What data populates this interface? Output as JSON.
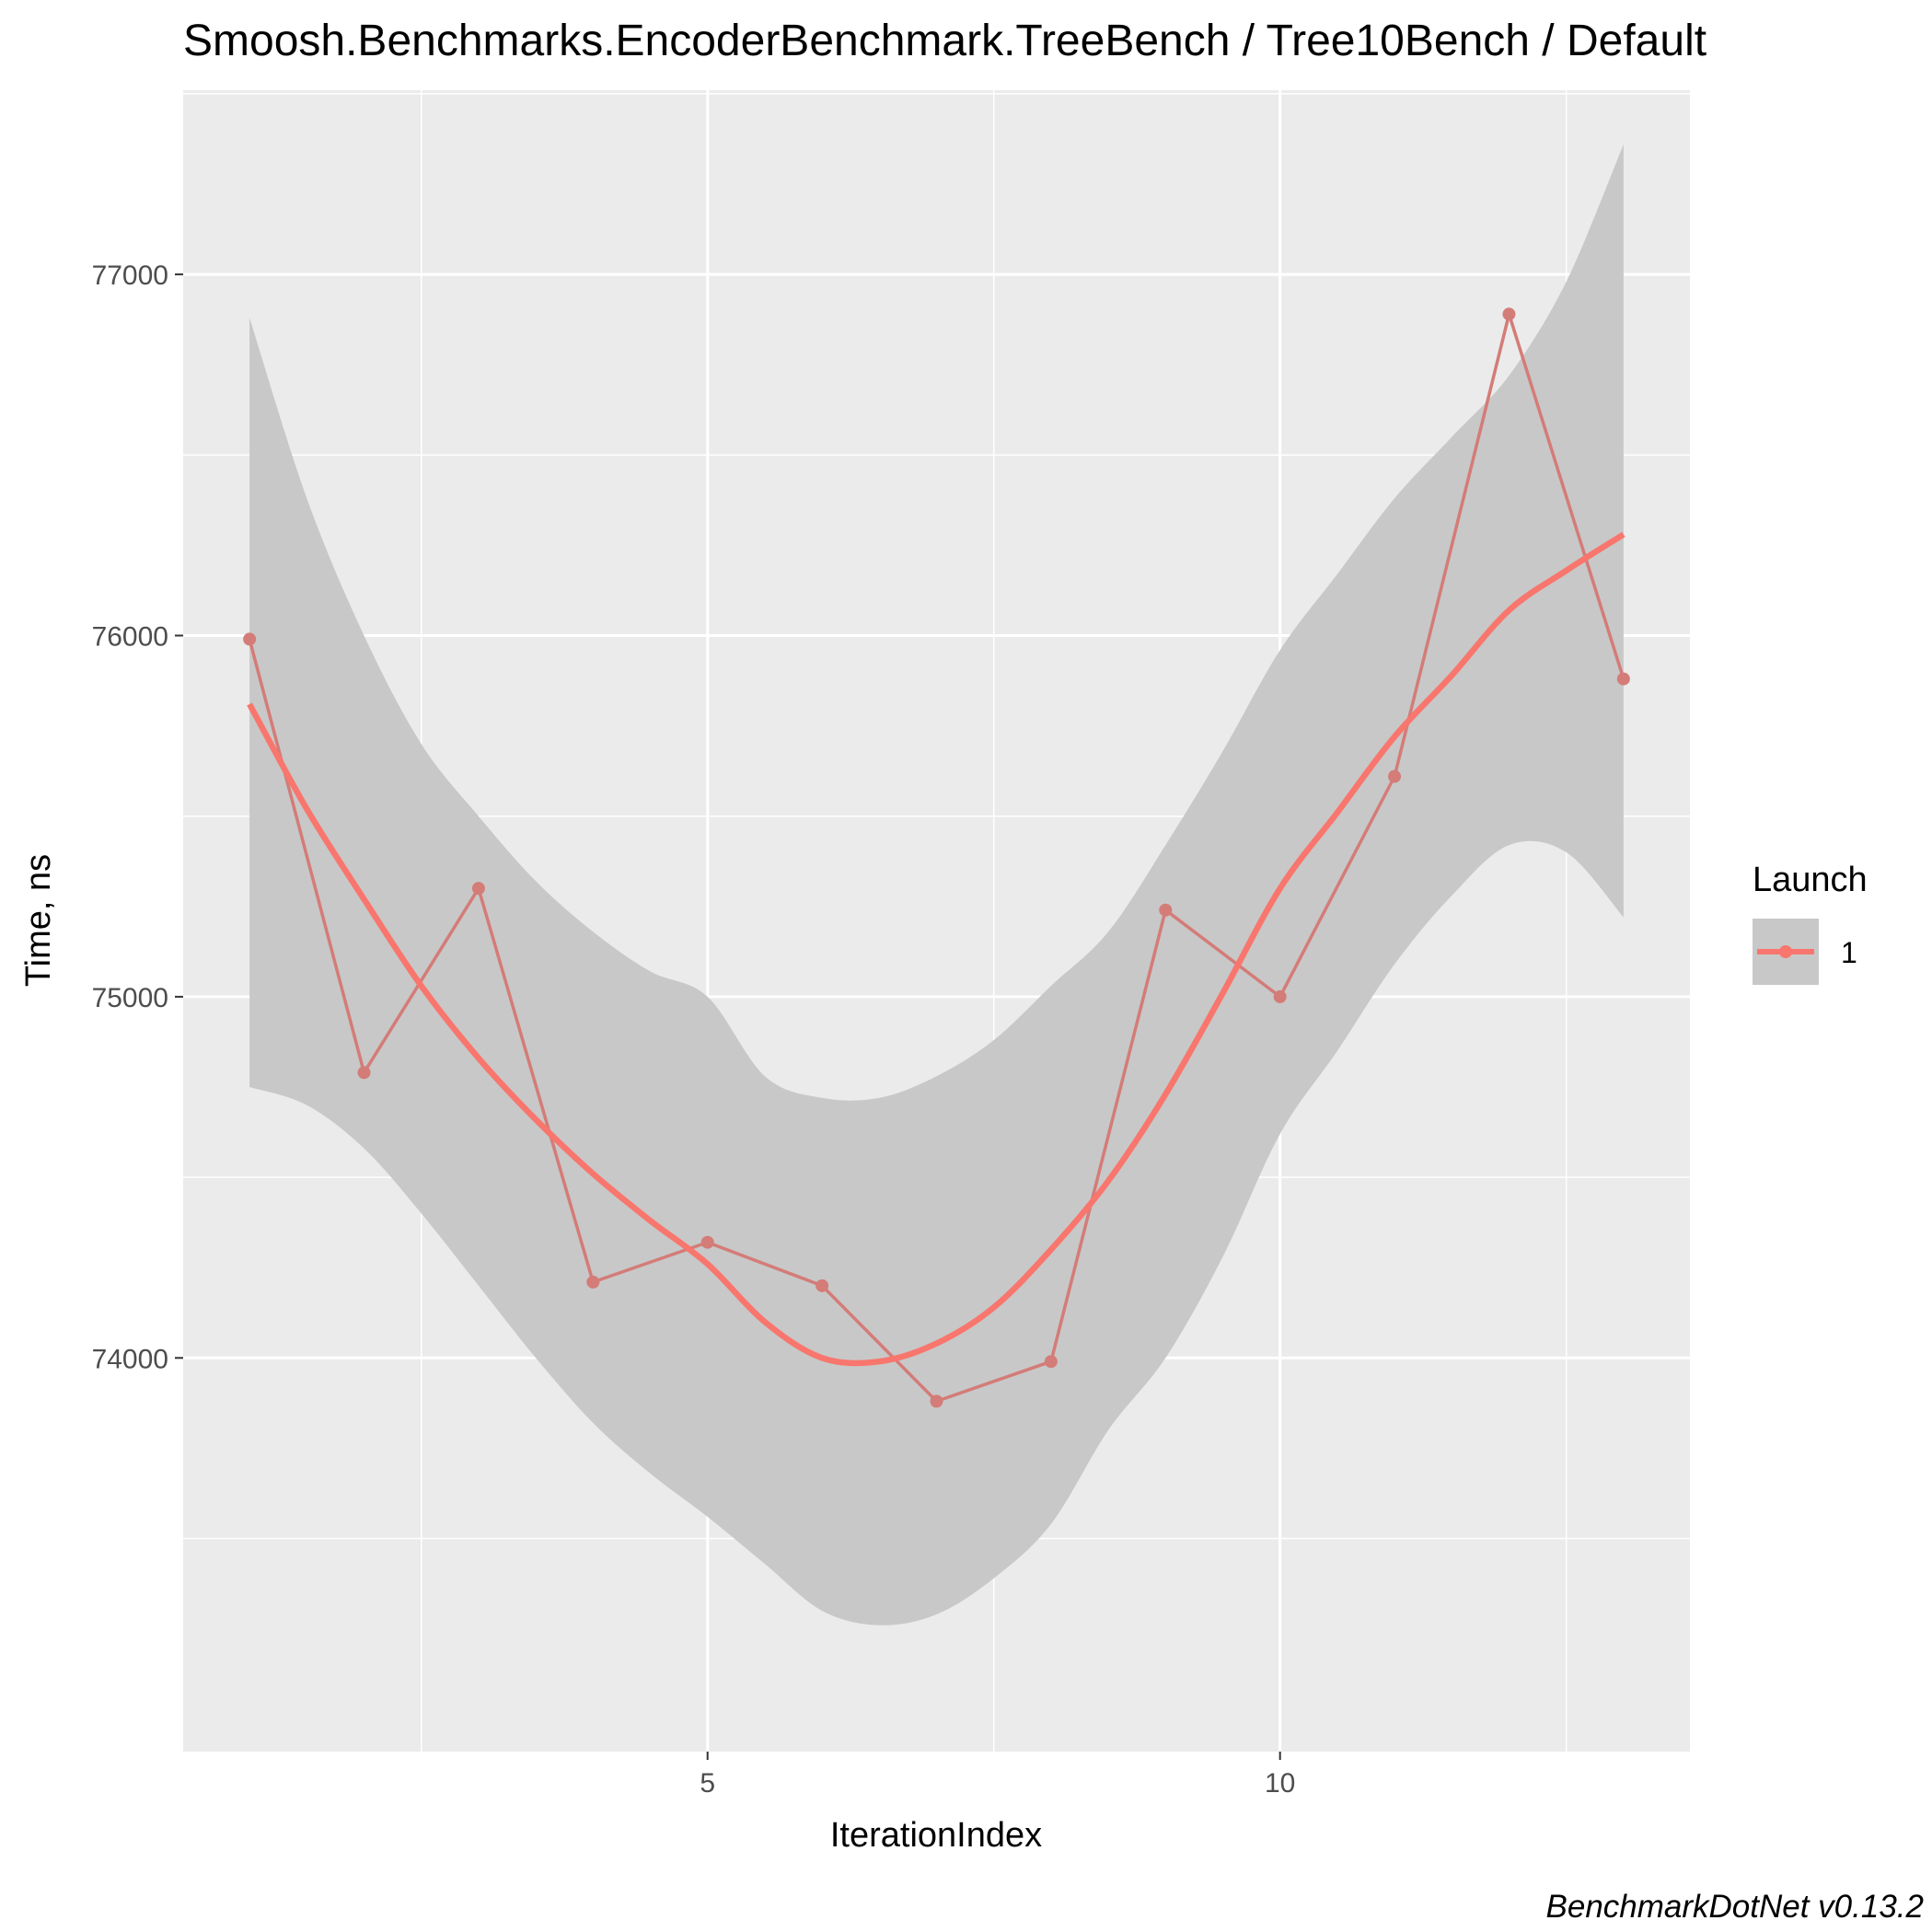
{
  "chart_data": {
    "type": "line",
    "title": "Smoosh.Benchmarks.EncoderBenchmark.TreeBench / Tree10Bench / Default",
    "xlabel": "IterationIndex",
    "ylabel": "Time, ns",
    "caption": "BenchmarkDotNet v0.13.2",
    "xlim": [
      0.42,
      13.58
    ],
    "ylim": [
      72910,
      77510
    ],
    "x_ticks": [
      5,
      10
    ],
    "x_tick_labels": [
      "5",
      "10"
    ],
    "x_minor_ticks": [
      2.5,
      7.5,
      12.5
    ],
    "y_ticks": [
      74000,
      75000,
      76000,
      77000
    ],
    "y_tick_labels": [
      "74000",
      "75000",
      "76000",
      "77000"
    ],
    "y_minor_ticks": [
      73500,
      74500,
      75500,
      76500,
      77500
    ],
    "grid": true,
    "legend": {
      "title": "Launch",
      "position": "right",
      "entries": [
        "1"
      ]
    },
    "colors": {
      "series": "#f8766d",
      "raw_line": "#d47c78",
      "ribbon": "#c8c8c8",
      "panel": "#ebebeb",
      "grid": "#ffffff"
    },
    "series": [
      {
        "name": "1",
        "x": [
          1,
          2,
          3,
          4,
          5,
          6,
          7,
          8,
          9,
          10,
          11,
          12,
          13
        ],
        "values": [
          75990,
          74790,
          75300,
          74210,
          74320,
          74200,
          73880,
          73990,
          75240,
          75000,
          75610,
          76890,
          75880
        ]
      }
    ],
    "smooth": {
      "x": [
        1,
        1.5,
        2,
        2.5,
        3,
        3.5,
        4,
        4.5,
        5,
        5.5,
        6,
        6.5,
        7,
        7.5,
        8,
        8.5,
        9,
        9.5,
        10,
        10.5,
        11,
        11.5,
        12,
        12.5,
        13
      ],
      "y": [
        75810,
        75520,
        75270,
        75030,
        74830,
        74660,
        74510,
        74380,
        74260,
        74100,
        74000,
        73990,
        74040,
        74140,
        74300,
        74490,
        74730,
        75010,
        75300,
        75510,
        75720,
        75890,
        76070,
        76180,
        76280
      ],
      "lower": [
        74750,
        74700,
        74580,
        74400,
        74200,
        74000,
        73820,
        73680,
        73560,
        73430,
        73300,
        73260,
        73290,
        73390,
        73540,
        73800,
        74000,
        74280,
        74620,
        74850,
        75090,
        75280,
        75420,
        75400,
        75220
      ],
      "upper": [
        76880,
        76380,
        76000,
        75700,
        75500,
        75320,
        75180,
        75070,
        75000,
        74780,
        74720,
        74720,
        74780,
        74880,
        75030,
        75180,
        75420,
        75680,
        75960,
        76170,
        76380,
        76550,
        76720,
        76980,
        77360
      ]
    }
  }
}
